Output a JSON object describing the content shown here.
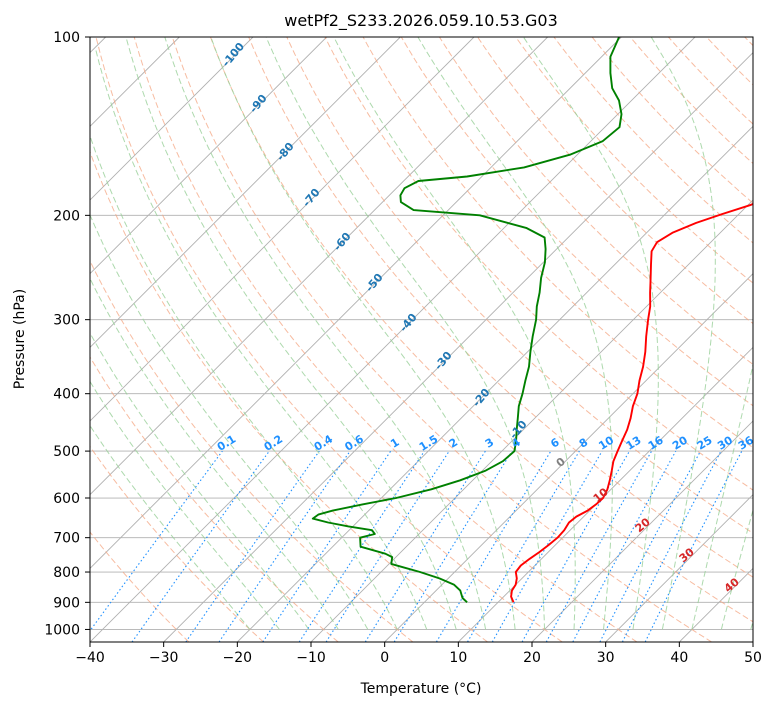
{
  "chart_data": {
    "type": "line",
    "subtype": "skew-T log-P diagram",
    "title": "wetPf2_S233.2026.059.10.53.G03",
    "xlabel": "Temperature (°C)",
    "ylabel": "Pressure (hPa)",
    "xlim": [
      -40,
      50
    ],
    "ylim": [
      1050,
      100
    ],
    "y_scale": "log",
    "x_ticks": [
      -40,
      -30,
      -20,
      -10,
      0,
      10,
      20,
      30,
      40,
      50
    ],
    "y_ticks": [
      100,
      200,
      300,
      400,
      500,
      600,
      700,
      800,
      900,
      1000
    ],
    "grid": true,
    "series": [
      {
        "color": "#ff0000",
        "points": [
          [
            12.1,
            900
          ],
          [
            11.0,
            880
          ],
          [
            10.3,
            860
          ],
          [
            10.0,
            840
          ],
          [
            9.3,
            820
          ],
          [
            8.3,
            800
          ],
          [
            8.1,
            780
          ],
          [
            8.4,
            760
          ],
          [
            8.8,
            740
          ],
          [
            9.1,
            720
          ],
          [
            9.3,
            700
          ],
          [
            9.2,
            680
          ],
          [
            8.8,
            660
          ],
          [
            9.0,
            645
          ],
          [
            9.7,
            630
          ],
          [
            10.0,
            615
          ],
          [
            10.1,
            600
          ],
          [
            9.5,
            580
          ],
          [
            8.6,
            560
          ],
          [
            7.6,
            540
          ],
          [
            6.5,
            520
          ],
          [
            5.7,
            500
          ],
          [
            4.9,
            480
          ],
          [
            4.1,
            460
          ],
          [
            3.0,
            440
          ],
          [
            1.7,
            420
          ],
          [
            0.6,
            400
          ],
          [
            -0.9,
            380
          ],
          [
            -2.3,
            360
          ],
          [
            -4.0,
            340
          ],
          [
            -6.0,
            320
          ],
          [
            -8.0,
            300
          ],
          [
            -9.5,
            285
          ],
          [
            -11.4,
            270
          ],
          [
            -13.2,
            256
          ],
          [
            -15.1,
            242
          ],
          [
            -16.8,
            230
          ],
          [
            -17.3,
            222
          ],
          [
            -16.5,
            214
          ],
          [
            -14.6,
            206
          ],
          [
            -12.3,
            199
          ],
          [
            -9.6,
            192
          ],
          [
            -7.7,
            184
          ],
          [
            -7.2,
            176
          ],
          [
            -7.4,
            168
          ],
          [
            -8.1,
            160
          ],
          [
            -9.4,
            150
          ],
          [
            -11.0,
            140
          ],
          [
            -11.8,
            130
          ],
          [
            -12.2,
            120
          ],
          [
            -13.0,
            110
          ],
          [
            -13.2,
            100
          ]
        ]
      },
      {
        "color": "#008000",
        "points": [
          [
            5.8,
            900
          ],
          [
            4.6,
            885
          ],
          [
            3.3,
            860
          ],
          [
            1.6,
            840
          ],
          [
            -1.2,
            820
          ],
          [
            -4.7,
            800
          ],
          [
            -7.7,
            785
          ],
          [
            -9.7,
            775
          ],
          [
            -10.5,
            755
          ],
          [
            -11.9,
            745
          ],
          [
            -16.2,
            725
          ],
          [
            -17.5,
            700
          ],
          [
            -16.0,
            690
          ],
          [
            -16.9,
            680
          ],
          [
            -20.6,
            670
          ],
          [
            -23.9,
            660
          ],
          [
            -26.5,
            650
          ],
          [
            -26.3,
            640
          ],
          [
            -24.9,
            630
          ],
          [
            -21.7,
            615
          ],
          [
            -18.0,
            600
          ],
          [
            -14.4,
            580
          ],
          [
            -11.7,
            560
          ],
          [
            -9.6,
            540
          ],
          [
            -8.5,
            520
          ],
          [
            -8.3,
            500
          ],
          [
            -9.5,
            480
          ],
          [
            -10.9,
            460
          ],
          [
            -12.3,
            440
          ],
          [
            -13.8,
            420
          ],
          [
            -15.0,
            400
          ],
          [
            -16.4,
            380
          ],
          [
            -17.8,
            360
          ],
          [
            -19.6,
            340
          ],
          [
            -21.4,
            320
          ],
          [
            -23.2,
            300
          ],
          [
            -24.9,
            285
          ],
          [
            -26.4,
            270
          ],
          [
            -28.2,
            255
          ],
          [
            -29.8,
            240
          ],
          [
            -31.5,
            228
          ],
          [
            -33.2,
            218
          ],
          [
            -37.0,
            210
          ],
          [
            -45.0,
            200
          ],
          [
            -54.7,
            196
          ],
          [
            -57.5,
            190
          ],
          [
            -58.5,
            185
          ],
          [
            -58.9,
            180
          ],
          [
            -58.0,
            175
          ],
          [
            -52.0,
            172
          ],
          [
            -45.5,
            166
          ],
          [
            -41.0,
            158
          ],
          [
            -38.4,
            150
          ],
          [
            -38.0,
            142
          ],
          [
            -39.5,
            135
          ],
          [
            -41.7,
            128
          ],
          [
            -44.3,
            122
          ],
          [
            -46.6,
            115
          ],
          [
            -48.8,
            108
          ],
          [
            -50.3,
            100
          ]
        ]
      }
    ],
    "dry_adiabat_labels": [
      "-100",
      "-90",
      "-80",
      "-70",
      "-60",
      "-50",
      "-40",
      "-30",
      "-20",
      "-10"
    ],
    "mixing_ratio_labels": [
      "0.1",
      "0.2",
      "0.4",
      "0.6",
      "1",
      "1.5",
      "2",
      "3",
      "4",
      "6",
      "8",
      "10",
      "13",
      "16",
      "20",
      "25",
      "30",
      "36"
    ],
    "moist_adiabat_labels": [
      "0",
      "10",
      "20",
      "30",
      "40"
    ]
  }
}
